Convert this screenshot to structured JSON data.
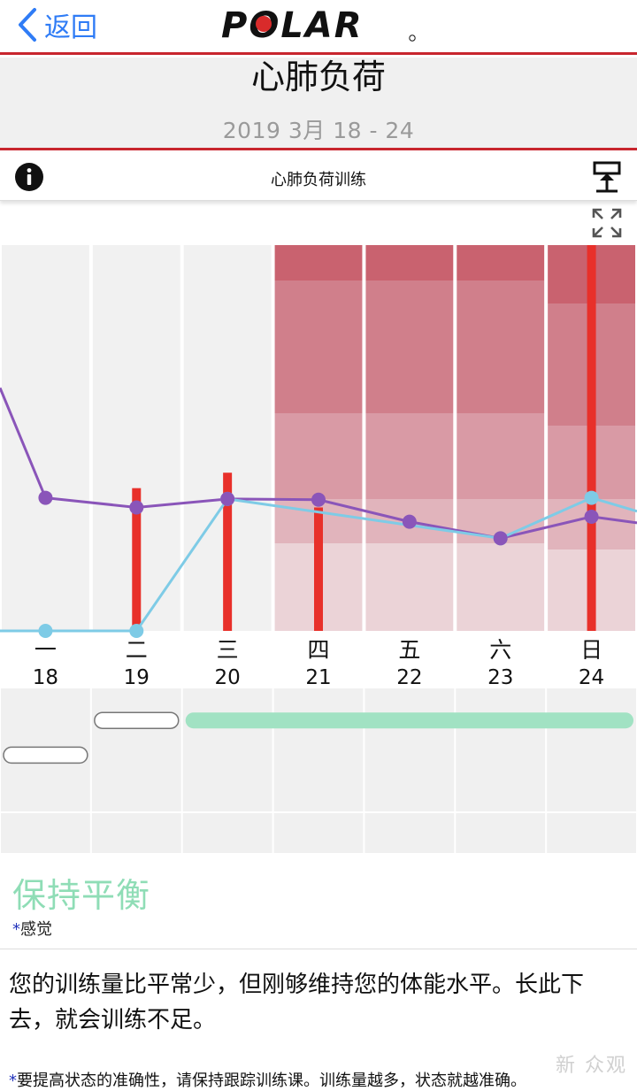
{
  "nav": {
    "back_label": "返回",
    "logo_text": "POLAR"
  },
  "header": {
    "title": "心肺负荷",
    "date_range": "2019 3月 18 - 24"
  },
  "toolbar": {
    "label": "心肺负荷训练",
    "info_icon": "info-icon",
    "export_icon": "export-icon"
  },
  "expand_icon": "expand-icon",
  "colors": {
    "accent_red": "#c8262e",
    "load_bar": "#e8302a",
    "purple_line": "#8a55b9",
    "blue_line": "#7ecbe6",
    "feeling_green": "#a1e2c3",
    "zone_shades": [
      "#c9626f",
      "#d07f8b",
      "#d99aa5",
      "#e1b4bc",
      "#ebd3d7"
    ]
  },
  "chart_data": {
    "type": "line",
    "days": [
      {
        "weekday": "一",
        "date": "18"
      },
      {
        "weekday": "二",
        "date": "19"
      },
      {
        "weekday": "三",
        "date": "20"
      },
      {
        "weekday": "四",
        "date": "21"
      },
      {
        "weekday": "五",
        "date": "22"
      },
      {
        "weekday": "六",
        "date": "23"
      },
      {
        "weekday": "日",
        "date": "24"
      }
    ],
    "load_bars": [
      0,
      0.37,
      0.41,
      0.32,
      0,
      0,
      1.0
    ],
    "purple_series": [
      0.345,
      0.32,
      0.342,
      0.34,
      0.283,
      0.24,
      0.296
    ],
    "blue_series": [
      0.0,
      0.0,
      0.342,
      null,
      null,
      0.24,
      0.345
    ],
    "zone_days": [
      3,
      4,
      5,
      6
    ],
    "feeling_segments": [
      {
        "start": 0,
        "end": 0,
        "level": 0.24,
        "style": "outline"
      },
      {
        "start": 1,
        "end": 1,
        "level": 0.52,
        "style": "outline"
      },
      {
        "start": 2,
        "end": 6,
        "level": 0.52,
        "style": "filled"
      }
    ]
  },
  "summary": {
    "verdict": "保持平衡",
    "note_star": "*",
    "note": "感觉",
    "description": "您的训练量比平常少，但刚够维持您的体能水平。长此下去，就会训练不足。",
    "footnote_star": "*",
    "footnote": "要提高状态的准确性，请保持跟踪训练课。训练量越多，状态就越准确。"
  },
  "watermark": "新 众观"
}
